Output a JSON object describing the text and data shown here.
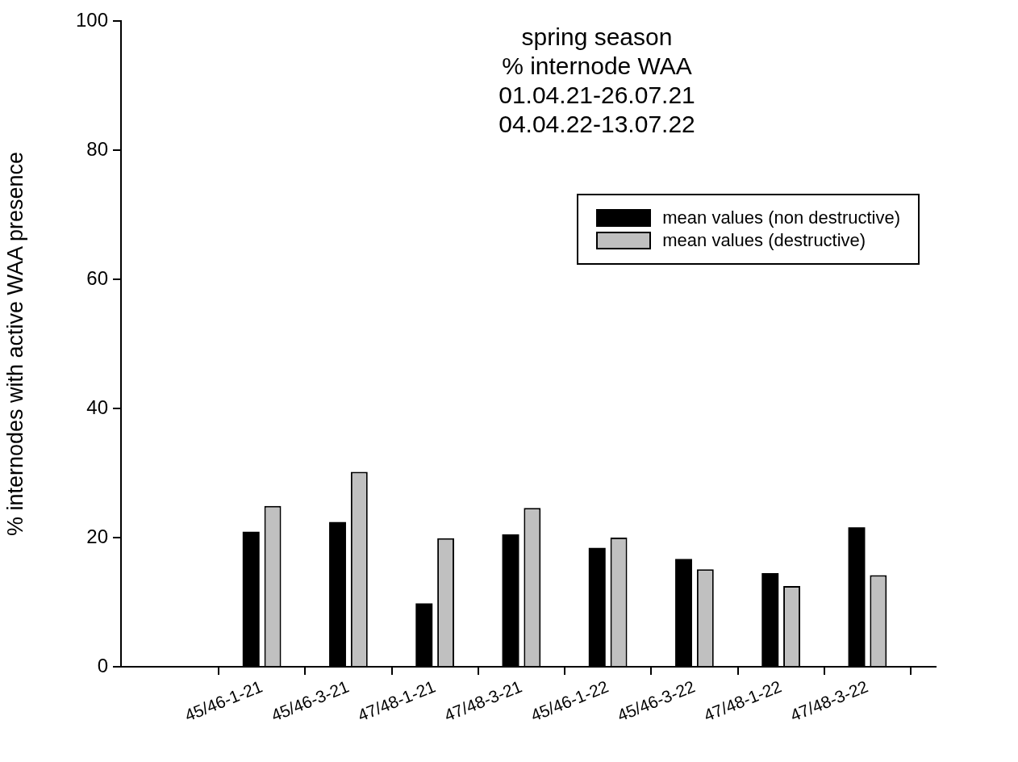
{
  "chart_data": {
    "type": "bar",
    "title": "spring season\n% internode WAA\n01.04.21-26.07.21\n04.04.22-13.07.22",
    "ylabel": "% internodes with active WAA presence",
    "categories": [
      "45/46-1-21",
      "45/46-3-21",
      "47/48-1-21",
      "47/48-3-21",
      "45/46-1-22",
      "45/46-3-22",
      "47/48-1-22",
      "47/48-3-22"
    ],
    "series": [
      {
        "name": "mean values (non destructive)",
        "color": "#000000",
        "values": [
          20.9,
          22.4,
          9.8,
          20.5,
          18.4,
          16.7,
          14.5,
          21.6
        ]
      },
      {
        "name": "mean values (destructive)",
        "color": "#c0c0c0",
        "values": [
          24.9,
          30.2,
          19.9,
          24.6,
          20.0,
          15.1,
          12.5,
          14.2
        ]
      }
    ],
    "ylim": [
      0,
      100
    ],
    "yticks": [
      0,
      20,
      40,
      60,
      80,
      100
    ],
    "grid": false,
    "legend": "top right"
  }
}
